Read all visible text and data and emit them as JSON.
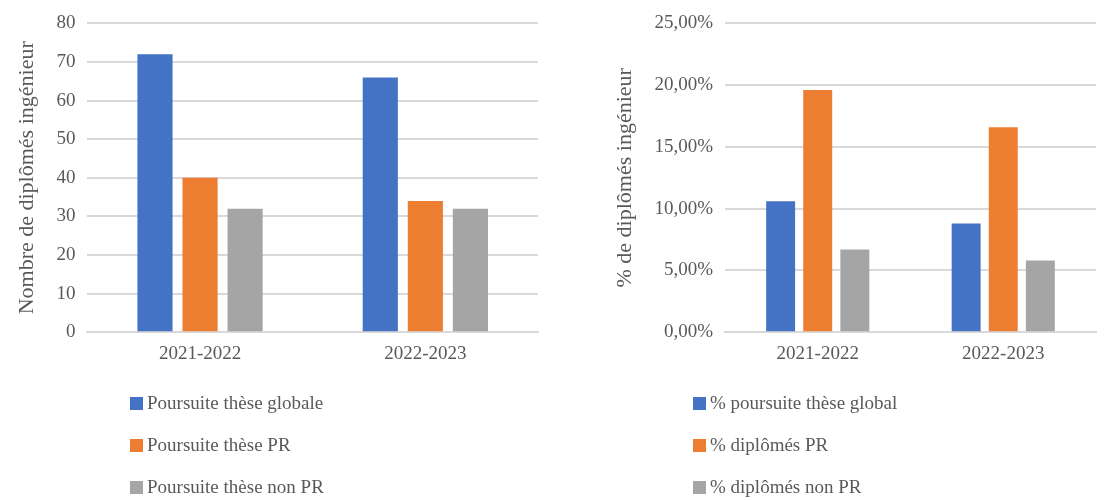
{
  "chart_data": [
    {
      "type": "bar",
      "ylabel": "Nombre de diplômés ingénieur",
      "categories": [
        "2021-2022",
        "2022-2023"
      ],
      "series": [
        {
          "name": "Poursuite thèse globale",
          "color": "#4472c4",
          "values": [
            72,
            66
          ]
        },
        {
          "name": "Poursuite thèse PR",
          "color": "#ed7d31",
          "values": [
            40,
            34
          ]
        },
        {
          "name": "Poursuite thèse non PR",
          "color": "#a5a5a5",
          "values": [
            32,
            32
          ]
        }
      ],
      "ylim": [
        0,
        80
      ],
      "yticks": [
        0,
        10,
        20,
        30,
        40,
        50,
        60,
        70,
        80
      ],
      "grid": "y",
      "legend": "bottom"
    },
    {
      "type": "bar",
      "ylabel": "% de diplômés ingénieur",
      "categories": [
        "2021-2022",
        "2022-2023"
      ],
      "series": [
        {
          "name": "% poursuite thèse global",
          "color": "#4472c4",
          "values": [
            10.6,
            8.8
          ]
        },
        {
          "name": "% diplômés PR",
          "color": "#ed7d31",
          "values": [
            19.6,
            16.6
          ]
        },
        {
          "name": "% diplômés non PR",
          "color": "#a5a5a5",
          "values": [
            6.7,
            5.8
          ]
        }
      ],
      "ylim": [
        0,
        25
      ],
      "yticks": [
        {
          "value": 0,
          "label": "0,00%"
        },
        {
          "value": 5,
          "label": "5,00%"
        },
        {
          "value": 10,
          "label": "10,00%"
        },
        {
          "value": 15,
          "label": "15,00%"
        },
        {
          "value": 20,
          "label": "20,00%"
        },
        {
          "value": 25,
          "label": "25,00%"
        }
      ],
      "grid": "y",
      "legend": "bottom"
    }
  ]
}
